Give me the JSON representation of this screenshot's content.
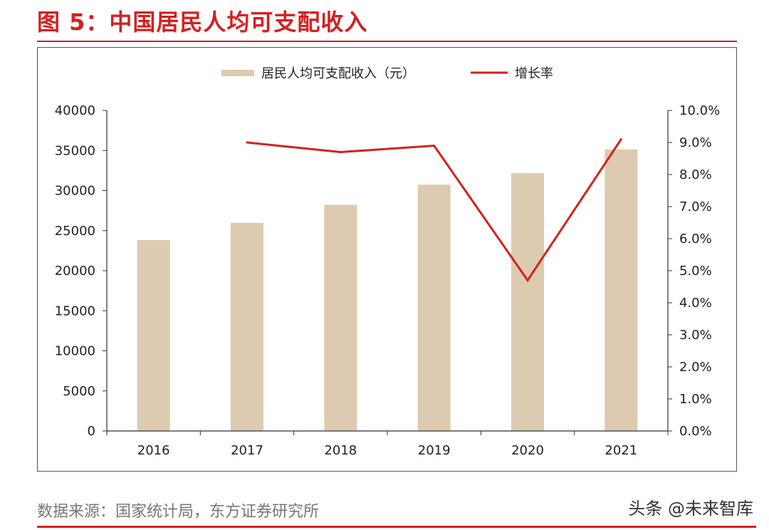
{
  "figure": {
    "title": "图 5：中国居民人均可支配收入",
    "source": "数据来源：国家统计局，东方证券研究所",
    "watermark": "头条 @未来智库"
  },
  "colors": {
    "accent": "#d42020",
    "bar": "#dccbb0",
    "line": "#d42020",
    "axis": "#333333"
  },
  "chart_data": {
    "type": "bar",
    "categories": [
      "2016",
      "2017",
      "2018",
      "2019",
      "2020",
      "2021"
    ],
    "series": [
      {
        "name": "居民人均可支配收入（元）",
        "type": "bar",
        "axis": "left",
        "values": [
          23821,
          25974,
          28228,
          30733,
          32189,
          35128
        ]
      },
      {
        "name": "增长率",
        "type": "line",
        "axis": "right",
        "values": [
          null,
          9.0,
          8.7,
          8.9,
          4.7,
          9.1
        ]
      }
    ],
    "ylim": [
      0,
      40000
    ],
    "yticks": [
      "0",
      "5000",
      "10000",
      "15000",
      "20000",
      "25000",
      "30000",
      "35000",
      "40000"
    ],
    "y2lim": [
      0,
      10
    ],
    "y2ticks": [
      "0.0%",
      "1.0%",
      "2.0%",
      "3.0%",
      "4.0%",
      "5.0%",
      "6.0%",
      "7.0%",
      "8.0%",
      "9.0%",
      "10.0%"
    ],
    "legend": "top-center",
    "grid": false
  }
}
